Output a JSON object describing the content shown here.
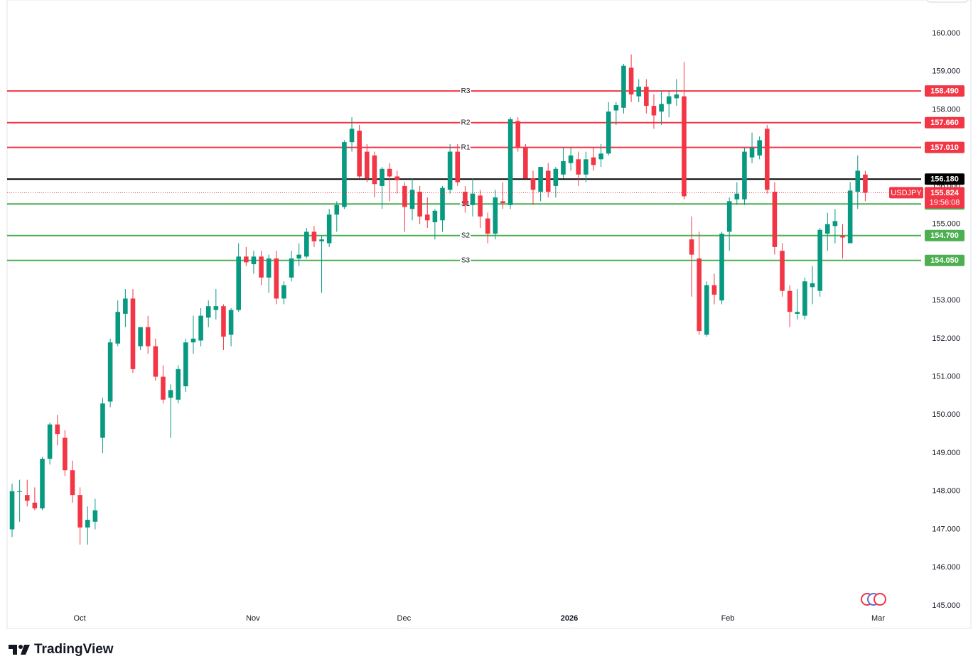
{
  "chart_data": {
    "type": "candlestick",
    "series": [
      {
        "name": "USDJPY",
        "up_color": "#089981",
        "down_color": "#f23645",
        "open": [
          147.0,
          147.98,
          147.9,
          147.7,
          147.55,
          148.85,
          149.75,
          149.4,
          148.55,
          147.9,
          147.05,
          147.2,
          149.4,
          150.35,
          151.87,
          152.65,
          153.05,
          151.8,
          152.3,
          151.8,
          151.0,
          150.45,
          150.4,
          150.75,
          151.9,
          151.95,
          152.55,
          152.75,
          152.85,
          152.1,
          152.75,
          154.15,
          153.95,
          154.15,
          153.6,
          154.1,
          153.05,
          153.6,
          154.1,
          154.15,
          154.8,
          154.55,
          154.5,
          155.25,
          155.45,
          157.15,
          157.45,
          156.9,
          156.8,
          156.0,
          156.45,
          156.25,
          156.0,
          155.4,
          155.85,
          155.25,
          155.05,
          155.1,
          155.9,
          156.9,
          155.85,
          155.5,
          155.75,
          155.15,
          154.75,
          155.6,
          155.5,
          157.7,
          157.0,
          156.2,
          155.85,
          156.4,
          156.0,
          156.3,
          156.6,
          156.7,
          156.3,
          156.75,
          156.7,
          156.85,
          157.98,
          158.05,
          159.1,
          158.35,
          158.6,
          158.1,
          157.95,
          158.15,
          158.3,
          158.35,
          154.6,
          154.1,
          152.1,
          153.4,
          153.0,
          154.8,
          155.65,
          155.65,
          156.75,
          156.8,
          157.5,
          155.85,
          154.3,
          153.25,
          152.65,
          152.6,
          153.35,
          153.25,
          154.75,
          154.95,
          154.7,
          154.5,
          155.85,
          156.3
        ],
        "high": [
          148.2,
          148.3,
          148.3,
          148.1,
          148.9,
          149.8,
          150.0,
          149.6,
          148.8,
          148.1,
          147.6,
          147.8,
          150.45,
          152.0,
          153.0,
          153.3,
          153.3,
          152.3,
          152.6,
          152.0,
          151.3,
          150.8,
          151.3,
          152.0,
          152.6,
          152.8,
          153.0,
          153.3,
          152.9,
          152.8,
          154.5,
          154.4,
          154.3,
          154.3,
          154.2,
          154.3,
          153.5,
          154.3,
          154.5,
          154.9,
          154.95,
          154.7,
          155.4,
          155.6,
          157.2,
          157.8,
          157.6,
          157.1,
          156.9,
          156.5,
          156.6,
          156.4,
          156.1,
          156.2,
          156.0,
          155.7,
          155.4,
          156.0,
          157.1,
          157.1,
          156.0,
          156.2,
          155.9,
          155.3,
          155.9,
          156.1,
          157.8,
          157.8,
          157.1,
          156.4,
          156.5,
          156.6,
          156.5,
          157.0,
          157.0,
          156.9,
          156.9,
          157.0,
          157.1,
          158.2,
          158.2,
          159.2,
          159.45,
          158.8,
          158.8,
          158.4,
          158.5,
          158.5,
          158.8,
          159.25,
          155.2,
          154.8,
          153.5,
          153.7,
          154.8,
          155.7,
          156.1,
          157.0,
          157.4,
          157.3,
          157.6,
          156.1,
          154.5,
          153.4,
          153.3,
          153.6,
          153.9,
          154.9,
          155.3,
          155.4,
          155.0,
          156.1,
          156.8,
          156.4
        ],
        "low": [
          146.8,
          147.2,
          147.6,
          147.5,
          147.5,
          148.7,
          149.2,
          148.4,
          147.7,
          146.6,
          146.6,
          147.0,
          149.0,
          150.2,
          151.8,
          152.3,
          151.1,
          151.7,
          151.6,
          150.9,
          150.3,
          149.4,
          150.3,
          150.6,
          151.6,
          151.8,
          152.3,
          152.5,
          151.7,
          151.8,
          152.7,
          153.9,
          153.7,
          153.4,
          153.2,
          152.9,
          152.9,
          153.5,
          153.9,
          154.1,
          154.4,
          153.2,
          154.4,
          154.8,
          155.4,
          156.9,
          156.2,
          156.1,
          155.7,
          155.4,
          155.6,
          155.8,
          154.8,
          155.1,
          155.0,
          154.9,
          154.6,
          154.8,
          155.8,
          156.0,
          155.3,
          155.2,
          154.9,
          154.5,
          154.6,
          155.4,
          155.4,
          156.9,
          156.2,
          155.5,
          155.6,
          155.7,
          155.7,
          156.2,
          156.4,
          156.0,
          156.1,
          156.4,
          156.5,
          156.8,
          157.6,
          157.9,
          158.2,
          158.2,
          157.9,
          157.5,
          157.6,
          157.8,
          158.1,
          155.65,
          153.1,
          152.1,
          152.05,
          152.9,
          152.9,
          154.3,
          155.5,
          155.5,
          156.6,
          156.7,
          155.8,
          154.2,
          153.1,
          152.3,
          152.5,
          152.5,
          152.9,
          153.1,
          154.3,
          154.5,
          154.1,
          154.5,
          155.4,
          155.6
        ],
        "close": [
          148.0,
          148.0,
          147.75,
          147.55,
          148.85,
          149.75,
          149.5,
          148.55,
          147.9,
          147.05,
          147.25,
          147.5,
          150.3,
          151.9,
          152.7,
          153.05,
          151.2,
          152.3,
          151.8,
          151.0,
          150.4,
          150.65,
          151.2,
          151.9,
          152.0,
          152.6,
          152.85,
          152.85,
          152.05,
          152.75,
          154.15,
          154.0,
          154.15,
          153.6,
          154.1,
          153.05,
          153.4,
          154.1,
          154.2,
          154.8,
          154.55,
          154.6,
          155.25,
          155.5,
          157.15,
          157.5,
          156.25,
          156.2,
          156.05,
          156.45,
          156.25,
          156.15,
          155.45,
          155.9,
          155.2,
          155.1,
          155.35,
          155.95,
          156.9,
          156.1,
          155.5,
          155.8,
          155.2,
          154.75,
          155.7,
          155.55,
          157.75,
          157.0,
          156.2,
          155.9,
          156.5,
          155.85,
          156.45,
          156.65,
          156.8,
          156.3,
          156.7,
          156.55,
          156.85,
          157.95,
          158.12,
          159.15,
          158.4,
          158.6,
          158.1,
          157.85,
          158.15,
          158.35,
          158.4,
          155.73,
          154.2,
          152.2,
          153.4,
          153.15,
          154.75,
          155.6,
          155.8,
          156.9,
          157.0,
          157.2,
          155.9,
          154.4,
          153.25,
          152.7,
          152.7,
          153.5,
          153.45,
          154.85,
          155.0,
          155.08,
          154.65,
          155.88,
          156.4,
          155.824
        ]
      }
    ],
    "countdown": "19:56:08",
    "levels": [
      {
        "name": "R3",
        "value": 158.49,
        "value_label": "158.490",
        "color": "#f23645"
      },
      {
        "name": "R2",
        "value": 157.66,
        "value_label": "157.660",
        "color": "#f23645"
      },
      {
        "name": "R1",
        "value": 157.01,
        "value_label": "157.010",
        "color": "#f23645"
      },
      {
        "value": 156.18,
        "value_label": "156.180",
        "color": "#000000"
      },
      {
        "name": "S1",
        "value": 155.53,
        "value_label": "155.530",
        "color": "#4caf50"
      },
      {
        "name": "S2",
        "value": 154.7,
        "value_label": "154.700",
        "color": "#4caf50"
      },
      {
        "name": "S3",
        "value": 154.05,
        "value_label": "154.050",
        "color": "#4caf50"
      }
    ],
    "xlim": [
      -0.66,
      120.4
    ],
    "xticks": [
      {
        "value": 8.95,
        "label": "Oct"
      },
      {
        "value": 31.9,
        "label": "Nov"
      },
      {
        "value": 51.9,
        "label": "Dec"
      },
      {
        "value": 73.8,
        "label": "2026"
      },
      {
        "value": 94.8,
        "label": "Feb"
      },
      {
        "value": 114.7,
        "label": "Mar"
      }
    ],
    "ylim": [
      144.404,
      160.875
    ],
    "yticks": [
      {
        "value": 145,
        "label": "145.000"
      },
      {
        "value": 146,
        "label": "146.000"
      },
      {
        "value": 147,
        "label": "147.000"
      },
      {
        "value": 148,
        "label": "148.000"
      },
      {
        "value": 149,
        "label": "149.000"
      },
      {
        "value": 150,
        "label": "150.000"
      },
      {
        "value": 151,
        "label": "151.000"
      },
      {
        "value": 152,
        "label": "152.000"
      },
      {
        "value": 153,
        "label": "153.000"
      },
      {
        "value": 154,
        "label": "154.000"
      },
      {
        "value": 155,
        "label": "155.000"
      },
      {
        "value": 156,
        "label": "156.000"
      },
      {
        "value": 157,
        "label": "157.000"
      },
      {
        "value": 158,
        "label": "158.000"
      },
      {
        "value": 159,
        "label": "159.000"
      },
      {
        "value": 160,
        "label": "160.000"
      }
    ],
    "grid": false,
    "watermark": "TradingView"
  }
}
